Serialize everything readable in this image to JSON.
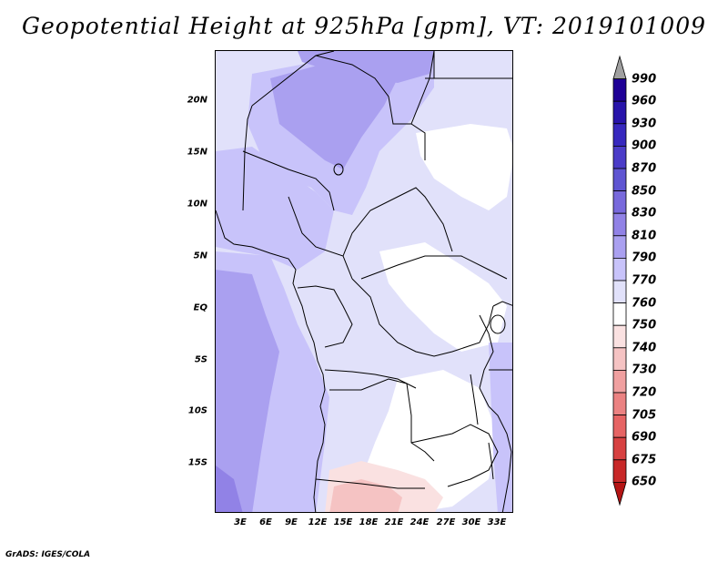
{
  "title": "Geopotential Height at 925hPa [gpm], VT: 2019101009",
  "credit": "GrADS: IGES/COLA",
  "lat_labels": [
    "20N",
    "15N",
    "10N",
    "5N",
    "EQ",
    "5S",
    "10S",
    "15S"
  ],
  "lon_labels": [
    "3E",
    "6E",
    "9E",
    "12E",
    "15E",
    "18E",
    "21E",
    "24E",
    "27E",
    "30E",
    "33E"
  ],
  "colorbar": {
    "levels": [
      "990",
      "960",
      "930",
      "900",
      "870",
      "850",
      "830",
      "810",
      "790",
      "770",
      "760",
      "750",
      "740",
      "730",
      "720",
      "705",
      "690",
      "675",
      "650"
    ],
    "colors_top_to_bottom": [
      "#a0a0a0",
      "#1e0096",
      "#2814aa",
      "#3728be",
      "#4b3cc8",
      "#5f55d2",
      "#7869dc",
      "#9182e6",
      "#aaa0f0",
      "#c8c3fa",
      "#e1e1fa",
      "#ffffff",
      "#fae1e1",
      "#f5c3c3",
      "#f0a0a0",
      "#eb8282",
      "#e66464",
      "#d74141",
      "#c82828",
      "#b41414"
    ]
  },
  "legend_colors": {
    "light_blue": "#e1e1fa",
    "mid_blue": "#c8c3fa",
    "blue": "#aaa0f0",
    "deep_blue": "#9182e6",
    "white": "#ffffff",
    "light_red": "#fae1e1",
    "pink": "#f5c3c3"
  }
}
